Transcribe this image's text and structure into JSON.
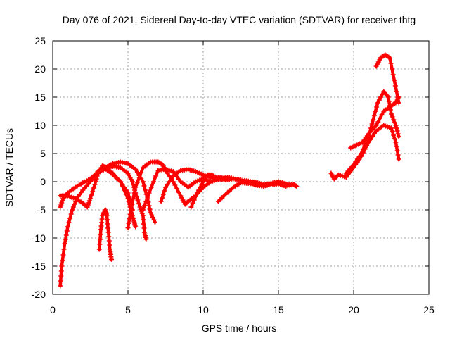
{
  "chart_data": {
    "type": "scatter",
    "title": "Day 076 of 2021, Sidereal Day-to-day VTEC variation (SDTVAR) for receiver thtg",
    "xlabel": "GPS time / hours",
    "ylabel": "SDTVAR / TECUs",
    "xlim": [
      0,
      25
    ],
    "ylim": [
      -20,
      25
    ],
    "x_ticks": [
      0,
      5,
      10,
      15,
      20,
      25
    ],
    "y_ticks": [
      -20,
      -15,
      -10,
      -5,
      0,
      5,
      10,
      15,
      20,
      25
    ],
    "x_tick_labels": [
      "0",
      "5",
      "10",
      "15",
      "20",
      "25"
    ],
    "y_tick_labels": [
      "-20",
      "-15",
      "-10",
      "-5",
      "0",
      "5",
      "10",
      "15",
      "20",
      "25"
    ],
    "grid": true,
    "marker": "+",
    "color": "#ff0000",
    "series": [
      {
        "name": "arc-1",
        "points": [
          [
            0.5,
            -18.5
          ],
          [
            0.6,
            -15
          ],
          [
            0.8,
            -11
          ],
          [
            1.0,
            -8
          ],
          [
            1.3,
            -5
          ],
          [
            1.6,
            -3
          ],
          [
            2.0,
            -1.5
          ],
          [
            2.5,
            0
          ],
          [
            3.0,
            1.5
          ],
          [
            3.5,
            2.5
          ],
          [
            4.0,
            3.2
          ],
          [
            4.5,
            3.5
          ],
          [
            5.0,
            3.2
          ],
          [
            5.5,
            2.2
          ],
          [
            6.0,
            0
          ],
          [
            6.3,
            -3
          ],
          [
            6.5,
            -5.5
          ],
          [
            6.8,
            -7.2
          ]
        ]
      },
      {
        "name": "arc-2",
        "points": [
          [
            0.5,
            -4.5
          ],
          [
            0.7,
            -3
          ],
          [
            1.0,
            -2
          ],
          [
            1.5,
            -1
          ],
          [
            2.0,
            -0.2
          ],
          [
            2.5,
            0.5
          ],
          [
            3.0,
            1.8
          ],
          [
            3.5,
            2.2
          ],
          [
            4.0,
            1.5
          ],
          [
            4.5,
            0
          ],
          [
            5.0,
            -3
          ],
          [
            5.2,
            -5
          ],
          [
            5.4,
            -7
          ],
          [
            5.5,
            -8
          ]
        ]
      },
      {
        "name": "arc-3",
        "points": [
          [
            0.5,
            -2.5
          ],
          [
            1.0,
            -2.5
          ],
          [
            1.5,
            -3
          ],
          [
            2.0,
            -3.8
          ],
          [
            2.3,
            -4.5
          ],
          [
            2.5,
            -3
          ],
          [
            2.8,
            -0.5
          ],
          [
            3.0,
            1.5
          ],
          [
            3.3,
            2.8
          ],
          [
            3.6,
            2.5
          ],
          [
            4.0,
            1.2
          ],
          [
            4.5,
            0
          ],
          [
            5.0,
            -2
          ],
          [
            5.3,
            -5
          ]
        ]
      },
      {
        "name": "arc-4",
        "points": [
          [
            3.1,
            -12
          ],
          [
            3.2,
            -8.5
          ],
          [
            3.3,
            -6
          ],
          [
            3.5,
            -5
          ],
          [
            3.6,
            -6
          ],
          [
            3.7,
            -9
          ],
          [
            3.8,
            -12
          ],
          [
            3.9,
            -13.8
          ]
        ]
      },
      {
        "name": "arc-5",
        "points": [
          [
            3.0,
            1.5
          ],
          [
            3.5,
            2.5
          ],
          [
            4.0,
            2.7
          ],
          [
            4.5,
            2.5
          ],
          [
            5.0,
            1.5
          ],
          [
            5.3,
            0
          ],
          [
            5.5,
            -2
          ],
          [
            5.8,
            -4.5
          ],
          [
            6.0,
            -6
          ],
          [
            6.1,
            -9
          ],
          [
            6.2,
            -10.2
          ]
        ]
      },
      {
        "name": "arc-6",
        "points": [
          [
            5.0,
            -8.2
          ],
          [
            5.2,
            -5
          ],
          [
            5.5,
            -1
          ],
          [
            6.0,
            2.5
          ],
          [
            6.5,
            3.5
          ],
          [
            7.0,
            3.5
          ],
          [
            7.3,
            3.0
          ],
          [
            7.5,
            2.0
          ],
          [
            8.0,
            0
          ],
          [
            8.5,
            -2.5
          ],
          [
            8.8,
            -4
          ],
          [
            9.0,
            -3.5
          ],
          [
            9.5,
            -2.5
          ],
          [
            10.0,
            -1
          ],
          [
            10.5,
            0
          ],
          [
            11.0,
            0.8
          ],
          [
            11.5,
            0.5
          ]
        ]
      },
      {
        "name": "arc-7",
        "points": [
          [
            6.0,
            -5
          ],
          [
            6.4,
            -2
          ],
          [
            7.0,
            2
          ],
          [
            7.5,
            2.2
          ],
          [
            8.0,
            1.8
          ],
          [
            8.5,
            0
          ],
          [
            9.0,
            -1
          ],
          [
            9.5,
            0
          ],
          [
            10.0,
            0.5
          ],
          [
            10.5,
            0
          ],
          [
            11.0,
            0.4
          ]
        ]
      },
      {
        "name": "arc-8",
        "points": [
          [
            7.2,
            -3.5
          ],
          [
            7.5,
            -1
          ],
          [
            8.0,
            1.0
          ],
          [
            8.5,
            2.0
          ],
          [
            9.0,
            2.2
          ],
          [
            9.5,
            1.8
          ],
          [
            10.0,
            1.2
          ],
          [
            10.5,
            0.8
          ],
          [
            11.0,
            0.5
          ],
          [
            11.5,
            0.8
          ],
          [
            12.0,
            0.6
          ]
        ]
      },
      {
        "name": "arc-9",
        "points": [
          [
            9.2,
            -4.5
          ],
          [
            9.6,
            -2
          ],
          [
            10.0,
            0
          ],
          [
            10.3,
            1.2
          ],
          [
            10.6,
            1.2
          ],
          [
            11.0,
            0.5
          ],
          [
            11.5,
            0.3
          ],
          [
            12.0,
            0.5
          ],
          [
            12.5,
            0.3
          ],
          [
            13.0,
            0.1
          ],
          [
            13.5,
            -0.1
          ],
          [
            14.0,
            -0.5
          ],
          [
            14.5,
            -0.3
          ],
          [
            15.0,
            0
          ],
          [
            15.5,
            -0.4
          ],
          [
            16.0,
            -0.5
          ],
          [
            16.2,
            -0.8
          ]
        ]
      },
      {
        "name": "arc-10",
        "points": [
          [
            11.0,
            -3.5
          ],
          [
            11.5,
            -2.2
          ],
          [
            12.0,
            -1
          ],
          [
            12.5,
            -0.2
          ],
          [
            13.0,
            -0.3
          ],
          [
            13.5,
            -0.6
          ],
          [
            14.0,
            -0.8
          ],
          [
            14.5,
            -0.5
          ],
          [
            15.0,
            -0.4
          ],
          [
            15.5,
            -0.8
          ],
          [
            16.0,
            -0.5
          ]
        ]
      },
      {
        "name": "arc-11",
        "points": [
          [
            18.5,
            1.5
          ],
          [
            18.7,
            0.5
          ],
          [
            19.0,
            1.2
          ],
          [
            19.5,
            0.8
          ],
          [
            20.0,
            2.5
          ],
          [
            20.5,
            4.5
          ],
          [
            21.0,
            7
          ],
          [
            21.5,
            9
          ],
          [
            22.0,
            10
          ],
          [
            22.5,
            9.5
          ],
          [
            22.8,
            7
          ],
          [
            23.0,
            4
          ]
        ]
      },
      {
        "name": "arc-12",
        "points": [
          [
            19.5,
            1.5
          ],
          [
            20.0,
            3
          ],
          [
            20.5,
            5
          ],
          [
            21.0,
            8
          ],
          [
            21.3,
            11
          ],
          [
            21.6,
            14
          ],
          [
            22.0,
            16
          ],
          [
            22.3,
            15
          ],
          [
            22.5,
            12
          ],
          [
            22.8,
            10
          ],
          [
            23.0,
            8
          ]
        ]
      },
      {
        "name": "arc-13",
        "points": [
          [
            19.8,
            6
          ],
          [
            20.2,
            6.5
          ],
          [
            20.6,
            7
          ],
          [
            21.0,
            8.5
          ],
          [
            21.5,
            10
          ],
          [
            22.0,
            12.5
          ],
          [
            22.5,
            13.5
          ],
          [
            22.8,
            14
          ],
          [
            23.0,
            15
          ]
        ]
      },
      {
        "name": "arc-14",
        "points": [
          [
            21.5,
            20.5
          ],
          [
            21.8,
            22
          ],
          [
            22.1,
            22.5
          ],
          [
            22.4,
            22
          ],
          [
            22.7,
            18
          ],
          [
            23.0,
            14
          ]
        ]
      }
    ]
  }
}
